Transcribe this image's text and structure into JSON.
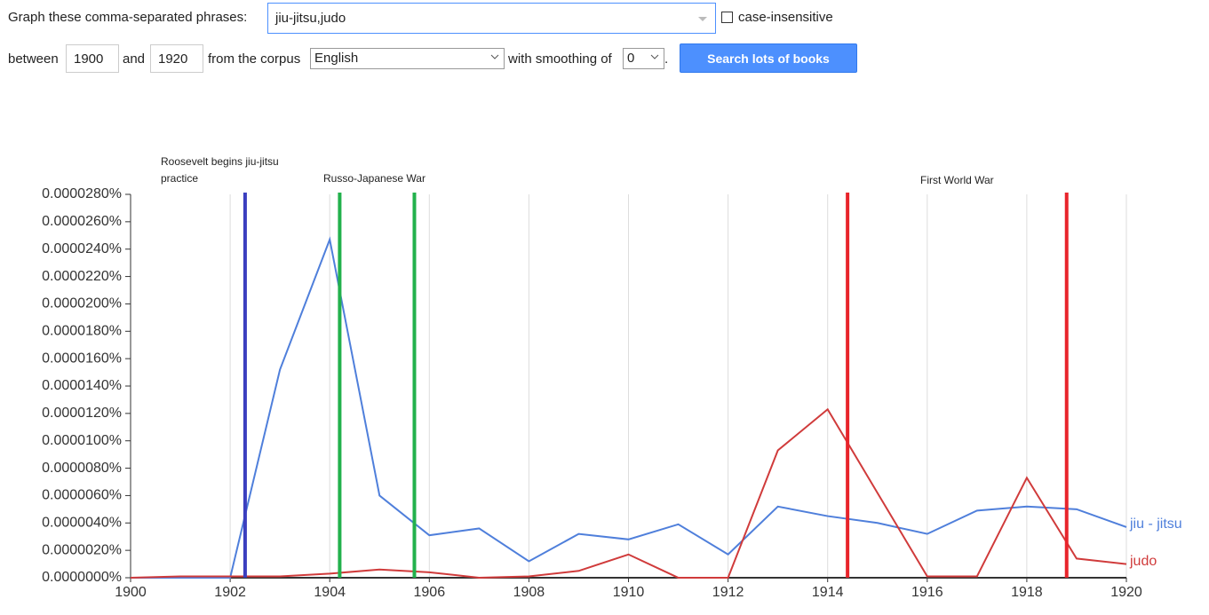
{
  "form": {
    "phrases_label": "Graph these comma-separated phrases:",
    "phrases_value": "jiu-jitsu,judo",
    "case_label": "case-insensitive",
    "between_label": "between",
    "start_year": "1900",
    "and_label": "and",
    "end_year": "1920",
    "corpus_label": "from the corpus",
    "corpus_value": "English",
    "smoothing_label": "with smoothing of",
    "smoothing_value": "0",
    "period": ".",
    "button": "Search lots of books"
  },
  "chart_data": {
    "type": "line",
    "x": [
      1900,
      1901,
      1902,
      1903,
      1904,
      1905,
      1906,
      1907,
      1908,
      1909,
      1910,
      1911,
      1912,
      1913,
      1914,
      1915,
      1916,
      1917,
      1918,
      1919,
      1920
    ],
    "series": [
      {
        "name": "jiu - jitsu",
        "color": "#4f7fdb",
        "values": [
          0,
          0,
          0,
          1.52e-05,
          2.47e-05,
          6e-06,
          3.1e-06,
          3.6e-06,
          1.2e-06,
          3.2e-06,
          2.8e-06,
          3.9e-06,
          1.7e-06,
          5.2e-06,
          4.5e-06,
          4e-06,
          3.2e-06,
          4.9e-06,
          5.2e-06,
          5e-06,
          3.7e-06
        ]
      },
      {
        "name": "judo",
        "color": "#d03b3b",
        "values": [
          0,
          1e-07,
          1e-07,
          1e-07,
          3e-07,
          6e-07,
          4e-07,
          0,
          1e-07,
          5e-07,
          1.7e-06,
          0,
          0,
          9.3e-06,
          1.23e-05,
          6.2e-06,
          1e-07,
          1e-07,
          7.3e-06,
          1.4e-06,
          1e-06
        ]
      }
    ],
    "xlim": [
      1900,
      1920
    ],
    "xticks": [
      1900,
      1902,
      1904,
      1906,
      1908,
      1910,
      1912,
      1914,
      1916,
      1918,
      1920
    ],
    "ylim": [
      0,
      2.8e-05
    ],
    "yticks": [
      {
        "value": 0,
        "label": "0.0000000%"
      },
      {
        "value": 2e-06,
        "label": "0.0000020%"
      },
      {
        "value": 4e-06,
        "label": "0.0000040%"
      },
      {
        "value": 6e-06,
        "label": "0.0000060%"
      },
      {
        "value": 8e-06,
        "label": "0.0000080%"
      },
      {
        "value": 1e-05,
        "label": "0.0000100%"
      },
      {
        "value": 1.2e-05,
        "label": "0.0000120%"
      },
      {
        "value": 1.4e-05,
        "label": "0.0000140%"
      },
      {
        "value": 1.6e-05,
        "label": "0.0000160%"
      },
      {
        "value": 1.8e-05,
        "label": "0.0000180%"
      },
      {
        "value": 2e-05,
        "label": "0.0000200%"
      },
      {
        "value": 2.2e-05,
        "label": "0.0000220%"
      },
      {
        "value": 2.4e-05,
        "label": "0.0000240%"
      },
      {
        "value": 2.6e-05,
        "label": "0.0000260%"
      },
      {
        "value": 2.8e-05,
        "label": "0.0000280%"
      }
    ],
    "grid": true,
    "annotations": [
      {
        "label": "Roosevelt begins jiu-jitsu practice",
        "color": "#3b3fbf",
        "x": [
          1902.3
        ]
      },
      {
        "label": "Russo-Japanese War",
        "color": "#22b14c",
        "x": [
          1904.2,
          1905.7
        ]
      },
      {
        "label": "First World War",
        "color": "#e8242b",
        "x": [
          1914.4,
          1918.8
        ]
      }
    ]
  }
}
